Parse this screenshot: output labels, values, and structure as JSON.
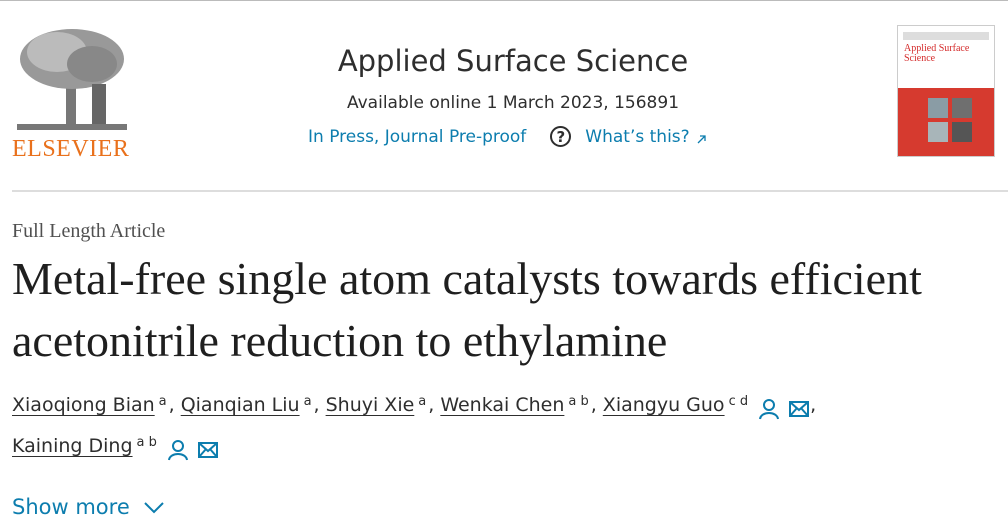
{
  "header": {
    "publisher": "ELSEVIER",
    "journal": "Applied Surface Science",
    "availability": "Available online 1 March 2023, 156891",
    "status": "In Press, Journal Pre-proof",
    "help_icon": "?",
    "help": "What’s this?",
    "cover_title": "Applied Surface Science"
  },
  "article": {
    "type": "Full Length Article",
    "title": "Metal-free single atom catalysts towards efficient acetonitrile reduction to ethylamine",
    "separator": ",",
    "authors": [
      {
        "name": "Xiaoqiong Bian",
        "affiliations": "a",
        "contact": false
      },
      {
        "name": "Qianqian Liu",
        "affiliations": "a",
        "contact": false
      },
      {
        "name": "Shuyi Xie",
        "affiliations": "a",
        "contact": false
      },
      {
        "name": "Wenkai Chen",
        "affiliations": "a b",
        "contact": false
      },
      {
        "name": "Xiangyu Guo",
        "affiliations": "c d",
        "contact": true
      },
      {
        "name": "Kaining Ding",
        "affiliations": "a b",
        "contact": true
      }
    ],
    "show_more": "Show more"
  }
}
